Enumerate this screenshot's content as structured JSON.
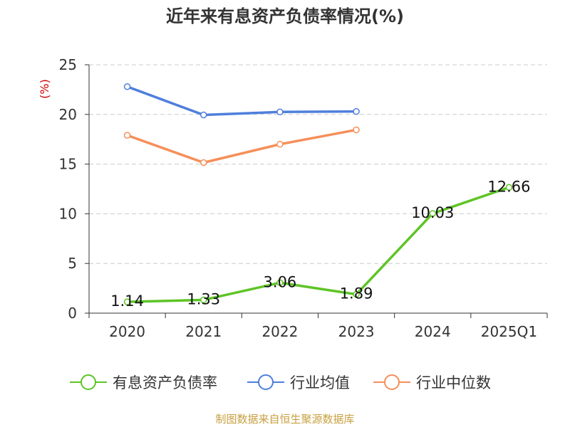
{
  "chart_data": {
    "type": "line",
    "title": "近年来有息资产负债率情况(%)",
    "ylabel": "(%)",
    "categories": [
      "2020",
      "2021",
      "2022",
      "2023",
      "2024",
      "2025Q1"
    ],
    "ylim": [
      0,
      25
    ],
    "yticks": [
      0,
      5,
      10,
      15,
      20,
      25
    ],
    "grid": true,
    "legend_position": "bottom",
    "series": [
      {
        "name": "有息资产负债率",
        "color": "#5ec426",
        "values": [
          1.14,
          1.33,
          3.06,
          1.89,
          10.03,
          12.66
        ],
        "labels": [
          "1.14",
          "1.33",
          "3.06",
          "1.89",
          "10.03",
          "12.66"
        ]
      },
      {
        "name": "行业均值",
        "color": "#4f7fdc",
        "values": [
          22.8,
          19.95,
          20.25,
          20.3,
          null,
          null
        ]
      },
      {
        "name": "行业中位数",
        "color": "#f58f5a",
        "values": [
          17.9,
          15.15,
          17.0,
          18.45,
          null,
          null
        ]
      }
    ],
    "source": "制图数据来自恒生聚源数据库"
  }
}
